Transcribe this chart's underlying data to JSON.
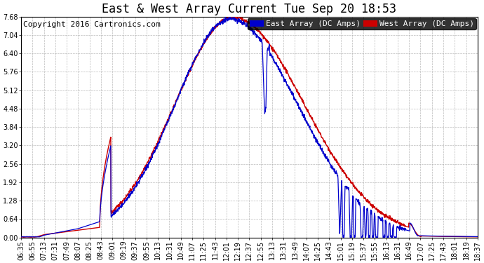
{
  "title": "East & West Array Current Tue Sep 20 18:53",
  "copyright": "Copyright 2016 Cartronics.com",
  "legend_east": "East Array (DC Amps)",
  "legend_west": "West Array (DC Amps)",
  "east_color": "#0000cc",
  "west_color": "#cc0000",
  "background_color": "#ffffff",
  "grid_color": "#aaaaaa",
  "ylim": [
    0,
    7.68
  ],
  "yticks": [
    0.0,
    0.64,
    1.28,
    1.92,
    2.56,
    3.2,
    3.84,
    4.48,
    5.12,
    5.76,
    6.4,
    7.04,
    7.68
  ],
  "xtick_labels": [
    "06:35",
    "06:55",
    "07:13",
    "07:31",
    "07:49",
    "08:07",
    "08:25",
    "08:43",
    "09:01",
    "09:19",
    "09:37",
    "09:55",
    "10:13",
    "10:31",
    "10:49",
    "11:07",
    "11:25",
    "11:43",
    "12:01",
    "12:19",
    "12:37",
    "12:55",
    "13:13",
    "13:31",
    "13:49",
    "14:07",
    "14:25",
    "14:43",
    "15:01",
    "15:19",
    "15:37",
    "15:55",
    "16:13",
    "16:31",
    "16:49",
    "17:07",
    "17:25",
    "17:43",
    "18:01",
    "18:19",
    "18:37"
  ],
  "title_fontsize": 12,
  "tick_fontsize": 7,
  "copyright_fontsize": 8,
  "legend_fontsize": 8
}
